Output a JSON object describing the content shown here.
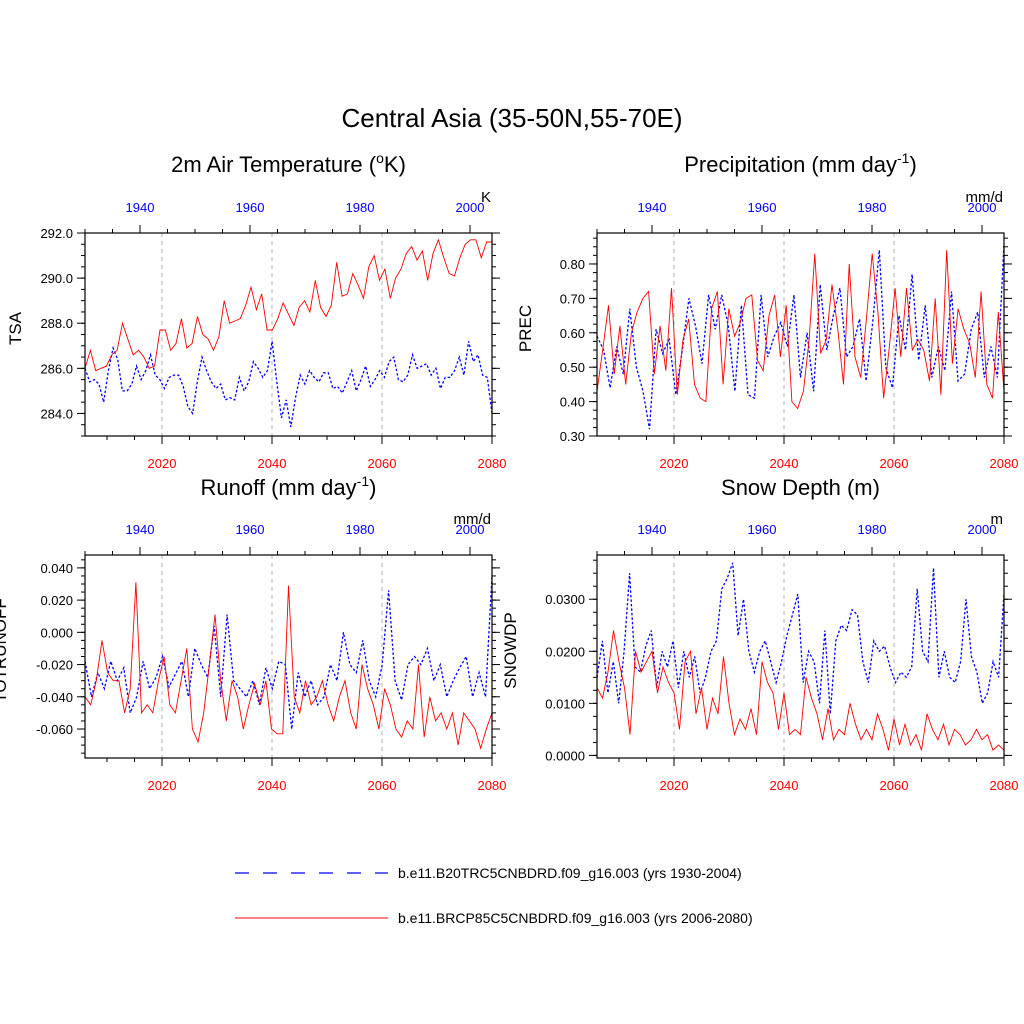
{
  "figure_title": "Central Asia (35-50N,55-70E)",
  "colors": {
    "future": "#ff0000",
    "historical": "#0000ff",
    "axis": "#000000",
    "grid": "#b0b0b0"
  },
  "legend": [
    {
      "label": "b.e11.B20TRC5CNBDRD.f09_g16.003 (yrs 1930-2004)",
      "color": "#0000ff",
      "style": "dashed"
    },
    {
      "label": "b.e11.BRCP85C5CNBDRD.f09_g16.003 (yrs 2006-2080)",
      "color": "#ff0000",
      "style": "solid"
    }
  ],
  "chart_data": [
    {
      "type": "line",
      "title": "2m Air Temperature (",
      "title_sup": "o",
      "title_end": "K)",
      "units": "K",
      "ylabel": "TSA",
      "ylim": [
        283.0,
        292.0
      ],
      "yticks": [
        284.0,
        286.0,
        288.0,
        290.0,
        292.0
      ],
      "ytick_labels": [
        "284.0",
        "286.0",
        "288.0",
        "290.0",
        "292.0"
      ],
      "bottom_axis": {
        "range": [
          2006,
          2080
        ],
        "ticks": [
          2020,
          2040,
          2060,
          2080
        ],
        "labels": [
          "2020",
          "2040",
          "2060",
          "2080"
        ]
      },
      "top_axis": {
        "range": [
          1930,
          2004
        ],
        "ticks": [
          1940,
          1960,
          1980,
          2000
        ],
        "labels": [
          "1940",
          "1960",
          "1980",
          "2000"
        ]
      },
      "series": [
        {
          "name": "b.e11.B20TRC5CNBDRD.f09_g16.003 (yrs 1930-2004)",
          "style": "dashed",
          "values": [
            286.0,
            285.4,
            285.5,
            285.3,
            284.5,
            285.9,
            286.9,
            286.4,
            285.0,
            285.0,
            285.3,
            286.1,
            285.5,
            285.9,
            286.6,
            285.7,
            285.5,
            285.1,
            285.6,
            285.7,
            285.7,
            285.2,
            284.3,
            284.0,
            285.4,
            286.5,
            285.9,
            285.4,
            285.1,
            285.3,
            284.6,
            284.7,
            284.6,
            285.6,
            285.0,
            285.4,
            286.3,
            286.0,
            285.6,
            285.9,
            287.2,
            285.4,
            283.8,
            284.6,
            283.4,
            284.7,
            285.7,
            285.3,
            285.9,
            285.6,
            285.4,
            285.8,
            285.8,
            285.1,
            285.2,
            284.9,
            285.4,
            285.9,
            285.0,
            285.5,
            286.1,
            285.2,
            285.5,
            285.9,
            285.6,
            286.3,
            286.5,
            285.5,
            285.4,
            285.7,
            286.6,
            286.0,
            286.1,
            286.2,
            285.7,
            286.0,
            285.1,
            285.6,
            285.6,
            285.9,
            286.5,
            285.7,
            287.2,
            286.3,
            286.6,
            285.7,
            285.6,
            284.0
          ]
        },
        {
          "name": "b.e11.BRCP85C5CNBDRD.f09_g16.003 (yrs 2006-2080)",
          "style": "solid",
          "values": [
            286.0,
            286.8,
            285.9,
            286.0,
            286.1,
            286.6,
            286.8,
            288.0,
            287.3,
            286.6,
            286.8,
            286.5,
            286.0,
            286.1,
            287.7,
            287.7,
            286.8,
            287.1,
            288.2,
            286.9,
            287.1,
            288.3,
            287.5,
            287.3,
            286.8,
            287.4,
            289.0,
            288.0,
            288.1,
            288.2,
            288.8,
            289.6,
            288.6,
            289.3,
            287.7,
            287.7,
            288.2,
            288.9,
            288.4,
            287.9,
            288.7,
            289.0,
            288.5,
            289.9,
            288.7,
            288.3,
            288.8,
            290.7,
            289.2,
            289.3,
            290.2,
            289.7,
            289.1,
            290.5,
            291.0,
            289.9,
            290.4,
            289.1,
            290.0,
            290.4,
            291.1,
            291.4,
            290.8,
            291.2,
            289.9,
            291.1,
            291.7,
            290.9,
            290.2,
            290.1,
            290.9,
            291.5,
            291.7,
            291.7,
            290.9,
            291.6,
            291.6
          ]
        }
      ]
    },
    {
      "type": "line",
      "title": "Precipitation (mm day",
      "title_sup": "-1",
      "title_end": ")",
      "units": "mm/d",
      "ylabel": "PREC",
      "ylim": [
        0.3,
        0.89
      ],
      "yticks": [
        0.3,
        0.4,
        0.5,
        0.6,
        0.7,
        0.8
      ],
      "ytick_labels": [
        "0.30",
        "0.40",
        "0.50",
        "0.60",
        "0.70",
        "0.80"
      ],
      "bottom_axis": {
        "range": [
          2006,
          2080
        ],
        "ticks": [
          2020,
          2040,
          2060,
          2080
        ],
        "labels": [
          "2020",
          "2040",
          "2060",
          "2080"
        ]
      },
      "top_axis": {
        "range": [
          1930,
          2004
        ],
        "ticks": [
          1940,
          1960,
          1980,
          2000
        ],
        "labels": [
          "1940",
          "1960",
          "1980",
          "2000"
        ]
      },
      "series": [
        {
          "name": "b.e11.B20TRC5CNBDRD.f09_g16.003 (yrs 1930-2004)",
          "style": "dashed",
          "values": [
            0.59,
            0.55,
            0.44,
            0.56,
            0.48,
            0.67,
            0.5,
            0.43,
            0.32,
            0.61,
            0.54,
            0.58,
            0.42,
            0.55,
            0.7,
            0.62,
            0.51,
            0.71,
            0.61,
            0.71,
            0.62,
            0.43,
            0.68,
            0.42,
            0.41,
            0.71,
            0.53,
            0.59,
            0.63,
            0.56,
            0.71,
            0.47,
            0.6,
            0.43,
            0.74,
            0.55,
            0.65,
            0.73,
            0.53,
            0.56,
            0.64,
            0.46,
            0.63,
            0.84,
            0.5,
            0.44,
            0.65,
            0.55,
            0.77,
            0.52,
            0.68,
            0.47,
            0.56,
            0.49,
            0.72,
            0.46,
            0.48,
            0.61,
            0.66,
            0.47,
            0.56,
            0.47,
            0.86
          ]
        },
        {
          "name": "b.e11.BRCP85C5CNBDRD.f09_g16.003 (yrs 2006-2080)",
          "style": "solid",
          "values": [
            0.43,
            0.55,
            0.68,
            0.48,
            0.62,
            0.45,
            0.6,
            0.66,
            0.7,
            0.72,
            0.48,
            0.62,
            0.49,
            0.73,
            0.42,
            0.58,
            0.64,
            0.45,
            0.41,
            0.4,
            0.67,
            0.72,
            0.45,
            0.67,
            0.59,
            0.63,
            0.7,
            0.71,
            0.52,
            0.49,
            0.65,
            0.71,
            0.53,
            0.68,
            0.4,
            0.38,
            0.43,
            0.58,
            0.83,
            0.54,
            0.58,
            0.74,
            0.61,
            0.45,
            0.8,
            0.53,
            0.47,
            0.64,
            0.83,
            0.66,
            0.41,
            0.56,
            0.73,
            0.53,
            0.73,
            0.55,
            0.58,
            0.55,
            0.46,
            0.7,
            0.42,
            0.84,
            0.51,
            0.67,
            0.61,
            0.57,
            0.47,
            0.72,
            0.45,
            0.41,
            0.66,
            0.43
          ]
        }
      ]
    },
    {
      "type": "line",
      "title": "Runoff (mm day",
      "title_sup": "-1",
      "title_end": ")",
      "units": "mm/d",
      "ylabel": "TOTRUNOFF",
      "ylim": [
        -0.078,
        0.048
      ],
      "yticks": [
        -0.06,
        -0.04,
        -0.02,
        0.0,
        0.02,
        0.04
      ],
      "ytick_labels": [
        "-0.060",
        "-0.040",
        "-0.020",
        "0.000",
        "0.020",
        "0.040"
      ],
      "bottom_axis": {
        "range": [
          2006,
          2080
        ],
        "ticks": [
          2020,
          2040,
          2060,
          2080
        ],
        "labels": [
          "2020",
          "2040",
          "2060",
          "2080"
        ]
      },
      "top_axis": {
        "range": [
          1930,
          2004
        ],
        "ticks": [
          1940,
          1960,
          1980,
          2000
        ],
        "labels": [
          "1940",
          "1960",
          "1980",
          "2000"
        ]
      },
      "series": [
        {
          "name": "b.e11.B20TRC5CNBDRD.f09_g16.003 (yrs 1930-2004)",
          "style": "dashed",
          "values": [
            -0.018,
            -0.04,
            -0.025,
            -0.035,
            -0.018,
            -0.03,
            -0.022,
            -0.05,
            -0.04,
            -0.018,
            -0.035,
            -0.028,
            -0.015,
            -0.034,
            -0.026,
            -0.018,
            -0.04,
            -0.01,
            -0.02,
            -0.028,
            0.004,
            -0.04,
            0.011,
            -0.03,
            -0.035,
            -0.04,
            -0.03,
            -0.045,
            -0.022,
            -0.035,
            -0.018,
            -0.02,
            -0.06,
            -0.025,
            -0.04,
            -0.03,
            -0.045,
            -0.04,
            -0.02,
            -0.03,
            0.0,
            -0.02,
            -0.025,
            -0.005,
            -0.03,
            -0.04,
            -0.02,
            0.026,
            -0.03,
            -0.042,
            -0.02,
            -0.015,
            -0.02,
            -0.01,
            -0.03,
            -0.02,
            -0.04,
            -0.03,
            -0.022,
            -0.015,
            -0.04,
            -0.025,
            -0.04,
            0.035
          ]
        },
        {
          "name": "b.e11.BRCP85C5CNBDRD.f09_g16.003 (yrs 2006-2080)",
          "style": "solid",
          "values": [
            -0.04,
            -0.045,
            -0.03,
            -0.005,
            -0.025,
            -0.03,
            -0.03,
            -0.05,
            -0.035,
            0.031,
            -0.05,
            -0.045,
            -0.05,
            -0.03,
            -0.015,
            -0.045,
            -0.05,
            -0.03,
            -0.01,
            -0.06,
            -0.068,
            -0.05,
            -0.02,
            0.011,
            -0.03,
            -0.055,
            -0.03,
            -0.04,
            -0.06,
            -0.045,
            -0.032,
            -0.045,
            -0.03,
            -0.06,
            -0.063,
            -0.063,
            0.029,
            -0.04,
            -0.05,
            -0.03,
            -0.045,
            -0.04,
            -0.03,
            -0.045,
            -0.055,
            -0.04,
            -0.03,
            -0.05,
            -0.06,
            -0.02,
            -0.035,
            -0.045,
            -0.06,
            -0.035,
            -0.045,
            -0.06,
            -0.065,
            -0.055,
            -0.06,
            -0.02,
            -0.065,
            -0.04,
            -0.055,
            -0.05,
            -0.06,
            -0.05,
            -0.07,
            -0.05,
            -0.055,
            -0.06,
            -0.072,
            -0.06,
            -0.05
          ]
        }
      ]
    },
    {
      "type": "line",
      "title": "Snow Depth (m)",
      "title_sup": "",
      "title_end": "",
      "units": "m",
      "ylabel": "SNOWDP",
      "ylim": [
        -0.0005,
        0.0385
      ],
      "yticks": [
        0.0,
        0.01,
        0.02,
        0.03
      ],
      "ytick_labels": [
        "0.0000",
        "0.0100",
        "0.0200",
        "0.0300"
      ],
      "bottom_axis": {
        "range": [
          2006,
          2080
        ],
        "ticks": [
          2020,
          2040,
          2060,
          2080
        ],
        "labels": [
          "2020",
          "2040",
          "2060",
          "2080"
        ]
      },
      "top_axis": {
        "range": [
          1930,
          2004
        ],
        "ticks": [
          1940,
          1960,
          1980,
          2000
        ],
        "labels": [
          "1940",
          "1960",
          "1980",
          "2000"
        ]
      },
      "series": [
        {
          "name": "b.e11.B20TRC5CNBDRD.f09_g16.003 (yrs 1930-2004)",
          "style": "dashed",
          "values": [
            0.015,
            0.022,
            0.012,
            0.018,
            0.01,
            0.02,
            0.035,
            0.017,
            0.016,
            0.021,
            0.024,
            0.013,
            0.02,
            0.017,
            0.022,
            0.013,
            0.02,
            0.015,
            0.019,
            0.012,
            0.015,
            0.02,
            0.022,
            0.032,
            0.034,
            0.037,
            0.023,
            0.03,
            0.02,
            0.016,
            0.02,
            0.022,
            0.018,
            0.014,
            0.018,
            0.023,
            0.027,
            0.031,
            0.014,
            0.02,
            0.018,
            0.01,
            0.024,
            0.008,
            0.022,
            0.025,
            0.024,
            0.028,
            0.027,
            0.018,
            0.014,
            0.022,
            0.02,
            0.021,
            0.017,
            0.014,
            0.016,
            0.015,
            0.017,
            0.032,
            0.02,
            0.018,
            0.036,
            0.015,
            0.02,
            0.015,
            0.014,
            0.018,
            0.03,
            0.019,
            0.016,
            0.01,
            0.012,
            0.018,
            0.015,
            0.031
          ]
        },
        {
          "name": "b.e11.BRCP85C5CNBDRD.f09_g16.003 (yrs 2006-2080)",
          "style": "solid",
          "values": [
            0.013,
            0.011,
            0.016,
            0.024,
            0.018,
            0.013,
            0.004,
            0.02,
            0.016,
            0.018,
            0.02,
            0.012,
            0.017,
            0.014,
            0.012,
            0.005,
            0.018,
            0.02,
            0.008,
            0.013,
            0.005,
            0.011,
            0.008,
            0.019,
            0.01,
            0.004,
            0.007,
            0.005,
            0.009,
            0.004,
            0.018,
            0.014,
            0.012,
            0.005,
            0.012,
            0.004,
            0.005,
            0.004,
            0.015,
            0.011,
            0.008,
            0.003,
            0.009,
            0.003,
            0.005,
            0.004,
            0.01,
            0.006,
            0.003,
            0.005,
            0.003,
            0.008,
            0.005,
            0.001,
            0.007,
            0.002,
            0.006,
            0.002,
            0.004,
            0.001,
            0.008,
            0.005,
            0.003,
            0.006,
            0.002,
            0.005,
            0.004,
            0.002,
            0.003,
            0.005,
            0.003,
            0.004,
            0.001,
            0.002,
            0.001
          ]
        }
      ]
    }
  ]
}
